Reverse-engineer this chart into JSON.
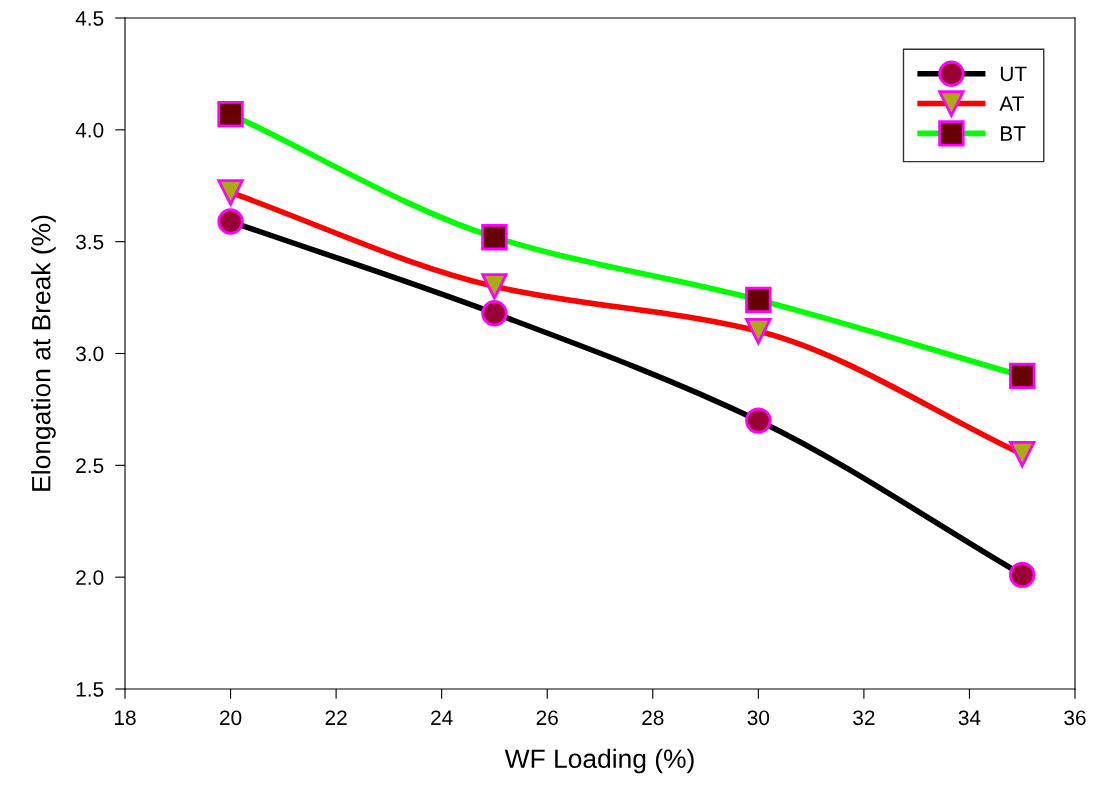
{
  "chart_data": {
    "type": "line",
    "xlabel": "WF Loading (%)",
    "ylabel": "Elongation at Break (%)",
    "x": [
      20,
      25,
      30,
      35
    ],
    "series": [
      {
        "name": "UT",
        "color": "#000000",
        "marker": "circle",
        "values": [
          3.59,
          3.18,
          2.7,
          2.01
        ]
      },
      {
        "name": "AT",
        "color": "#ff0000",
        "marker": "triangle",
        "values": [
          3.72,
          3.3,
          3.1,
          2.55
        ]
      },
      {
        "name": "BT",
        "color": "#00ff00",
        "marker": "square",
        "values": [
          4.07,
          3.52,
          3.24,
          2.9
        ]
      }
    ],
    "xlim": [
      18,
      36
    ],
    "xticks": [
      18,
      20,
      22,
      24,
      26,
      28,
      30,
      32,
      34,
      36
    ],
    "ylim": [
      1.5,
      4.5
    ],
    "yticks": [
      1.5,
      {
        "value": 2,
        "label": "2.0"
      },
      2.5,
      {
        "value": 3,
        "label": "3.0"
      },
      3.5,
      {
        "value": 4,
        "label": "4.0"
      },
      4.5
    ],
    "grid": false,
    "legend": "top right",
    "line_style": "solid"
  }
}
